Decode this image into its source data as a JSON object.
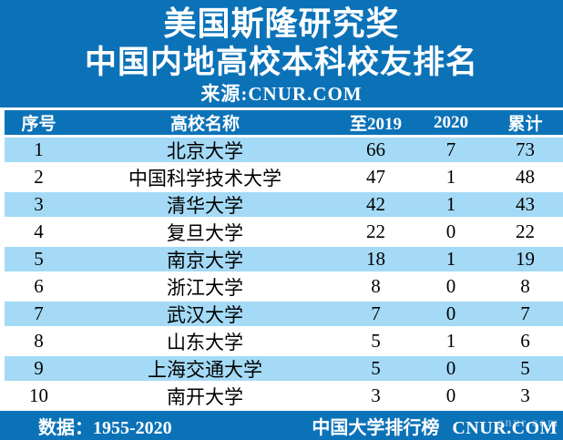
{
  "banner": {
    "title_line1": "美国斯隆研究奖",
    "title_line2": "中国内地高校本科校友排名",
    "source": "来源:CNUR.COM"
  },
  "table": {
    "columns": [
      "序号",
      "高校名称",
      "至2019",
      "2020",
      "累计"
    ],
    "rows": [
      {
        "rank": "1",
        "university": "北京大学",
        "to2019": "66",
        "y2020": "7",
        "total": "73"
      },
      {
        "rank": "2",
        "university": "中国科学技术大学",
        "to2019": "47",
        "y2020": "1",
        "total": "48"
      },
      {
        "rank": "3",
        "university": "清华大学",
        "to2019": "42",
        "y2020": "1",
        "total": "43"
      },
      {
        "rank": "4",
        "university": "复旦大学",
        "to2019": "22",
        "y2020": "0",
        "total": "22"
      },
      {
        "rank": "5",
        "university": "南京大学",
        "to2019": "18",
        "y2020": "1",
        "total": "19"
      },
      {
        "rank": "6",
        "university": "浙江大学",
        "to2019": "8",
        "y2020": "0",
        "total": "8"
      },
      {
        "rank": "7",
        "university": "武汉大学",
        "to2019": "7",
        "y2020": "0",
        "total": "7"
      },
      {
        "rank": "8",
        "university": "山东大学",
        "to2019": "5",
        "y2020": "1",
        "total": "6"
      },
      {
        "rank": "9",
        "university": "上海交通大学",
        "to2019": "5",
        "y2020": "0",
        "total": "5"
      },
      {
        "rank": "10",
        "university": "南开大学",
        "to2019": "3",
        "y2020": "0",
        "total": "3"
      }
    ]
  },
  "footer": {
    "data_range": "数据：1955-2020",
    "site_cn": "中国大学排行榜",
    "site_en": "CNUR.COM",
    "watermark": "cnur.com"
  },
  "colors": {
    "primary_blue": "#0b72b8",
    "row_light_blue": "#a4daf6",
    "header_text": "#ffffff",
    "body_text": "#000000"
  },
  "chart_data": {
    "type": "table",
    "title": "美国斯隆研究奖 中国内地高校本科校友排名",
    "source": "CNUR.COM",
    "columns": [
      "序号",
      "高校名称",
      "至2019",
      "2020",
      "累计"
    ],
    "rows": [
      [
        1,
        "北京大学",
        66,
        7,
        73
      ],
      [
        2,
        "中国科学技术大学",
        47,
        1,
        48
      ],
      [
        3,
        "清华大学",
        42,
        1,
        43
      ],
      [
        4,
        "复旦大学",
        22,
        0,
        22
      ],
      [
        5,
        "南京大学",
        18,
        1,
        19
      ],
      [
        6,
        "浙江大学",
        8,
        0,
        8
      ],
      [
        7,
        "武汉大学",
        7,
        0,
        7
      ],
      [
        8,
        "山东大学",
        5,
        1,
        6
      ],
      [
        9,
        "上海交通大学",
        5,
        0,
        5
      ],
      [
        10,
        "南开大学",
        3,
        0,
        3
      ]
    ],
    "data_range": "1955-2020"
  }
}
